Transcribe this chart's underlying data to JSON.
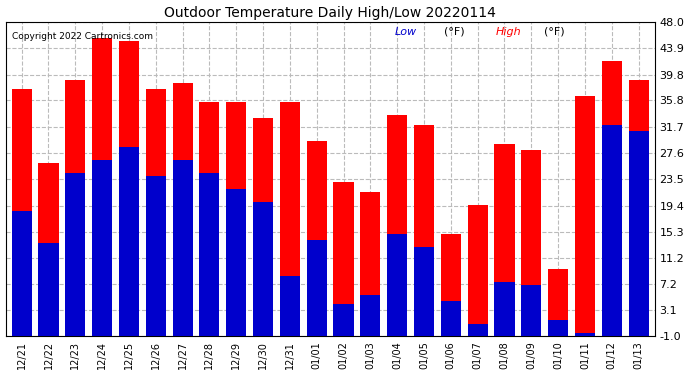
{
  "title": "Outdoor Temperature Daily High/Low 20220114",
  "copyright": "Copyright 2022 Cartronics.com",
  "legend_low_label": "Low",
  "legend_high_label": "High",
  "legend_unit": "(°F)",
  "background_color": "#ffffff",
  "plot_bg_color": "#ffffff",
  "grid_color": "#bbbbbb",
  "bar_color_low": "#0000cc",
  "bar_color_high": "#ff0000",
  "ylim_min": -1.0,
  "ylim_max": 48.0,
  "yticks": [
    -1.0,
    3.1,
    7.2,
    11.2,
    15.3,
    19.4,
    23.5,
    27.6,
    31.7,
    35.8,
    39.8,
    43.9,
    48.0
  ],
  "dates": [
    "12/21",
    "12/22",
    "12/23",
    "12/24",
    "12/25",
    "12/26",
    "12/27",
    "12/28",
    "12/29",
    "12/30",
    "12/31",
    "01/01",
    "01/02",
    "01/03",
    "01/04",
    "01/05",
    "01/06",
    "01/07",
    "01/08",
    "01/09",
    "01/10",
    "01/11",
    "01/12",
    "01/13"
  ],
  "highs": [
    38.5,
    27.0,
    40.0,
    46.5,
    46.0,
    38.5,
    39.5,
    36.5,
    36.5,
    34.0,
    36.5,
    30.5,
    24.0,
    22.5,
    34.5,
    33.0,
    16.0,
    20.5,
    30.0,
    29.0,
    10.5,
    37.5,
    43.0,
    40.0
  ],
  "lows": [
    19.5,
    14.5,
    25.5,
    27.5,
    29.5,
    25.0,
    27.5,
    25.5,
    23.0,
    21.0,
    9.5,
    15.0,
    5.0,
    6.5,
    16.0,
    14.0,
    5.5,
    2.0,
    8.5,
    8.0,
    2.5,
    0.5,
    33.0,
    32.0
  ]
}
